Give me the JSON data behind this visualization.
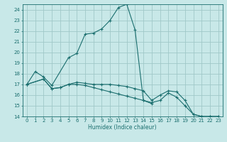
{
  "xlabel": "Humidex (Indice chaleur)",
  "background_color": "#c8e8e8",
  "grid_color": "#a0c8c8",
  "line_color": "#1a6e6e",
  "xlim": [
    -0.5,
    23.5
  ],
  "ylim": [
    14,
    24.5
  ],
  "xticks": [
    0,
    1,
    2,
    3,
    4,
    5,
    6,
    7,
    8,
    9,
    10,
    11,
    12,
    13,
    14,
    15,
    16,
    17,
    18,
    19,
    20,
    21,
    22,
    23
  ],
  "yticks": [
    14,
    15,
    16,
    17,
    18,
    19,
    20,
    21,
    22,
    23,
    24
  ],
  "series1": {
    "x": [
      0,
      1,
      2,
      3,
      5,
      6,
      7,
      8,
      9,
      10,
      11,
      12,
      13,
      14,
      15
    ],
    "y": [
      17.0,
      18.2,
      17.7,
      16.9,
      19.5,
      19.9,
      21.7,
      21.8,
      22.2,
      23.0,
      24.2,
      24.5,
      22.1,
      15.5,
      15.2
    ]
  },
  "series2": {
    "x": [
      0,
      2,
      3,
      4,
      5,
      6,
      7,
      8,
      9,
      10,
      11,
      12,
      13,
      14,
      15,
      16,
      17,
      18,
      19,
      20,
      21,
      22,
      23
    ],
    "y": [
      17.0,
      17.5,
      16.6,
      16.7,
      17.0,
      17.2,
      17.1,
      17.0,
      17.0,
      17.0,
      16.9,
      16.8,
      16.6,
      16.4,
      15.5,
      16.0,
      16.4,
      16.3,
      15.5,
      14.2,
      14.0,
      14.0,
      14.0
    ]
  },
  "series3": {
    "x": [
      0,
      2,
      3,
      4,
      5,
      6,
      7,
      8,
      9,
      10,
      11,
      12,
      13,
      14,
      15,
      16,
      17,
      18,
      19,
      20,
      21,
      22,
      23
    ],
    "y": [
      17.0,
      17.5,
      16.6,
      16.7,
      17.0,
      17.0,
      16.9,
      16.7,
      16.5,
      16.3,
      16.1,
      15.9,
      15.7,
      15.5,
      15.3,
      15.5,
      16.2,
      15.8,
      15.0,
      14.2,
      14.0,
      14.0,
      14.0
    ]
  }
}
